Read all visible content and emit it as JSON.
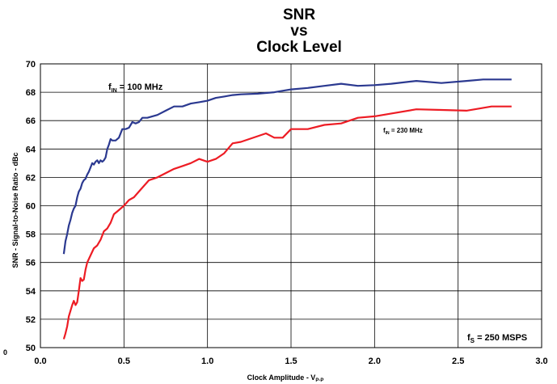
{
  "chart_data": {
    "type": "line",
    "title_lines": [
      "SNR",
      "vs",
      "Clock Level"
    ],
    "xlabel": "Clock Amplitude - V",
    "xlabel_sub": "P-P",
    "ylabel": "SNR - Signal-to-Noise Ratio - dBc",
    "xlim": [
      0.0,
      3.0
    ],
    "ylim": [
      50,
      70
    ],
    "x_ticks": [
      "0.0",
      "0.5",
      "1.0",
      "1.5",
      "2.0",
      "2.5",
      "3.0"
    ],
    "y_ticks": [
      "50",
      "52",
      "54",
      "56",
      "58",
      "60",
      "62",
      "64",
      "66",
      "68",
      "70"
    ],
    "stray_tick": "0",
    "grid": true,
    "annotations": {
      "fs_main": "f",
      "fs_sub": "S",
      "fs_rest": " = 250 MSPS",
      "fin100_main": "f",
      "fin100_sub": "IN",
      "fin100_rest": " = 100 MHz",
      "fin230_main": "f",
      "fin230_sub": "IN",
      "fin230_rest": " = 230 MHz"
    },
    "series": [
      {
        "color": "#2b3990",
        "x": [
          0.14,
          0.15,
          0.16,
          0.17,
          0.18,
          0.19,
          0.2,
          0.21,
          0.22,
          0.23,
          0.24,
          0.25,
          0.26,
          0.27,
          0.28,
          0.29,
          0.3,
          0.31,
          0.32,
          0.33,
          0.34,
          0.35,
          0.36,
          0.37,
          0.38,
          0.39,
          0.4,
          0.41,
          0.42,
          0.43,
          0.44,
          0.45,
          0.47,
          0.49,
          0.51,
          0.53,
          0.55,
          0.57,
          0.59,
          0.61,
          0.64,
          0.67,
          0.7,
          0.75,
          0.8,
          0.85,
          0.9,
          0.95,
          1.0,
          1.05,
          1.1,
          1.15,
          1.2,
          1.3,
          1.4,
          1.5,
          1.6,
          1.7,
          1.8,
          1.9,
          2.0,
          2.1,
          2.25,
          2.4,
          2.55,
          2.65,
          2.82
        ],
        "y": [
          56.6,
          57.5,
          58.0,
          58.6,
          59.0,
          59.5,
          59.8,
          60.0,
          60.6,
          61.0,
          61.2,
          61.6,
          61.8,
          61.9,
          62.2,
          62.4,
          62.7,
          63.0,
          62.9,
          63.1,
          63.2,
          63.0,
          63.2,
          63.1,
          63.2,
          63.4,
          64.0,
          64.3,
          64.7,
          64.6,
          64.6,
          64.6,
          64.8,
          65.4,
          65.4,
          65.5,
          65.9,
          65.8,
          65.9,
          66.2,
          66.2,
          66.3,
          66.4,
          66.7,
          67.0,
          67.0,
          67.2,
          67.3,
          67.4,
          67.6,
          67.7,
          67.8,
          67.85,
          67.9,
          68.0,
          68.2,
          68.3,
          68.45,
          68.6,
          68.45,
          68.5,
          68.6,
          68.8,
          68.65,
          68.8,
          68.9,
          68.9
        ]
      },
      {
        "color": "#ed1c24",
        "x": [
          0.14,
          0.15,
          0.16,
          0.17,
          0.18,
          0.19,
          0.2,
          0.21,
          0.22,
          0.23,
          0.24,
          0.25,
          0.26,
          0.27,
          0.28,
          0.3,
          0.32,
          0.34,
          0.36,
          0.38,
          0.4,
          0.42,
          0.44,
          0.46,
          0.48,
          0.5,
          0.53,
          0.56,
          0.59,
          0.62,
          0.65,
          0.7,
          0.75,
          0.8,
          0.85,
          0.9,
          0.95,
          1.0,
          1.05,
          1.1,
          1.15,
          1.2,
          1.25,
          1.3,
          1.35,
          1.4,
          1.45,
          1.5,
          1.6,
          1.7,
          1.8,
          1.9,
          2.0,
          2.1,
          2.25,
          2.4,
          2.55,
          2.7,
          2.82
        ],
        "y": [
          50.6,
          51.0,
          51.5,
          52.2,
          52.6,
          53.0,
          53.3,
          53.0,
          53.2,
          54.0,
          54.9,
          54.7,
          54.8,
          55.5,
          56.0,
          56.5,
          57.0,
          57.2,
          57.6,
          58.2,
          58.4,
          58.8,
          59.4,
          59.6,
          59.8,
          60.0,
          60.4,
          60.6,
          61.0,
          61.4,
          61.8,
          62.0,
          62.3,
          62.6,
          62.8,
          63.0,
          63.3,
          63.1,
          63.3,
          63.7,
          64.4,
          64.5,
          64.7,
          64.9,
          65.1,
          64.8,
          64.8,
          65.4,
          65.4,
          65.7,
          65.8,
          66.2,
          66.3,
          66.5,
          66.8,
          66.75,
          66.7,
          67.0,
          67.0
        ]
      }
    ]
  }
}
